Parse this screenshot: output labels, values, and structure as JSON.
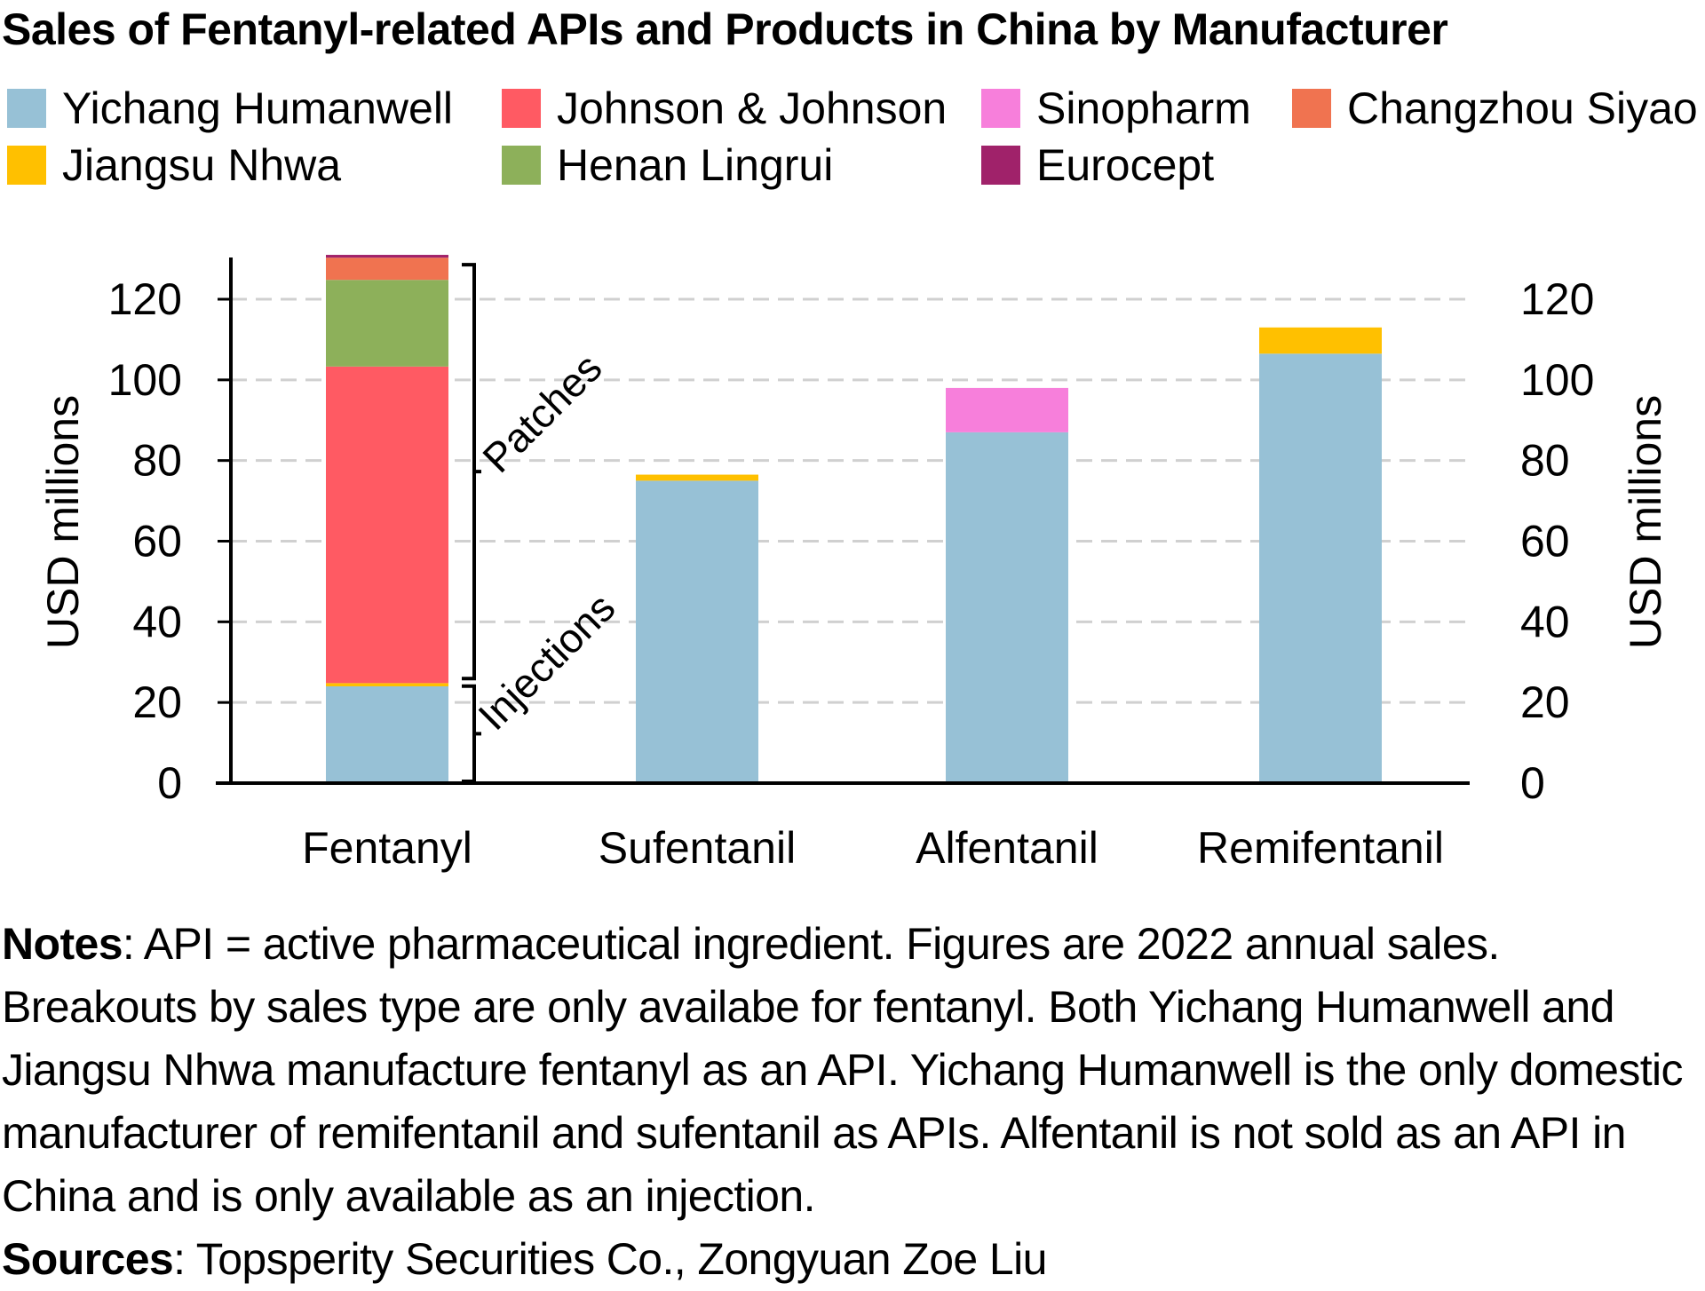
{
  "title": "Sales of Fentanyl-related APIs and Products in China by Manufacturer",
  "legend": [
    {
      "name": "Yichang Humanwell",
      "color": "#97C1D6"
    },
    {
      "name": "Johnson & Johnson",
      "color": "#FF5A63"
    },
    {
      "name": "Sinopharm",
      "color": "#F77FDB"
    },
    {
      "name": "Changzhou Siyao",
      "color": "#F07350"
    },
    {
      "name": "Jiangsu Nhwa",
      "color": "#FFC000"
    },
    {
      "name": "Henan Lingrui",
      "color": "#8DB05A"
    },
    {
      "name": "Eurocept",
      "color": "#A0226A"
    }
  ],
  "chart_data": {
    "type": "bar",
    "stacked": true,
    "categories": [
      "Fentanyl",
      "Sufentanil",
      "Alfentanil",
      "Remifentanil"
    ],
    "series": [
      {
        "name": "Yichang Humanwell",
        "color": "#97C1D6",
        "values": [
          24,
          75,
          87,
          106.5
        ]
      },
      {
        "name": "Jiangsu Nhwa",
        "color": "#FFC000",
        "values": [
          0.8,
          1.5,
          0,
          6.5
        ]
      },
      {
        "name": "Johnson & Johnson",
        "color": "#FF5A63",
        "values": [
          78.5,
          0,
          0,
          0
        ]
      },
      {
        "name": "Sinopharm",
        "color": "#F77FDB",
        "values": [
          0,
          0,
          11,
          0
        ]
      },
      {
        "name": "Henan Lingrui",
        "color": "#8DB05A",
        "values": [
          21.5,
          0,
          0,
          0
        ]
      },
      {
        "name": "Changzhou Siyao",
        "color": "#F07350",
        "values": [
          5.5,
          0,
          0,
          0
        ]
      },
      {
        "name": "Eurocept",
        "color": "#A0226A",
        "values": [
          0.7,
          0,
          0,
          0
        ]
      }
    ],
    "ylabel": "USD millions",
    "y2label": "USD millions",
    "ylim": [
      0,
      130
    ],
    "yticks": [
      0,
      20,
      40,
      60,
      80,
      100,
      120
    ],
    "grid": true,
    "grid_style": "dashed",
    "legend_position": "top",
    "annotations": [
      {
        "text": "Injections",
        "category": "Fentanyl",
        "range": [
          0,
          24.8
        ]
      },
      {
        "text": "Patches",
        "category": "Fentanyl",
        "range": [
          24.8,
          130
        ]
      }
    ]
  },
  "notes": {
    "notes_label": "Notes",
    "notes_text": ": API = active pharmaceutical ingredient. Figures are 2022 annual sales. Breakouts by sales type are only availabe for fentanyl. Both Yichang Humanwell and Jiangsu Nhwa manufacture fentanyl as an API.  Yichang Humanwell is the only domestic manufacturer of remifentanil and sufentanil as APIs.  Alfentanil is not sold as an API in China and is only available as an injection.",
    "sources_label": "Sources",
    "sources_text": ": Topsperity Securities Co., Zongyuan Zoe Liu"
  }
}
